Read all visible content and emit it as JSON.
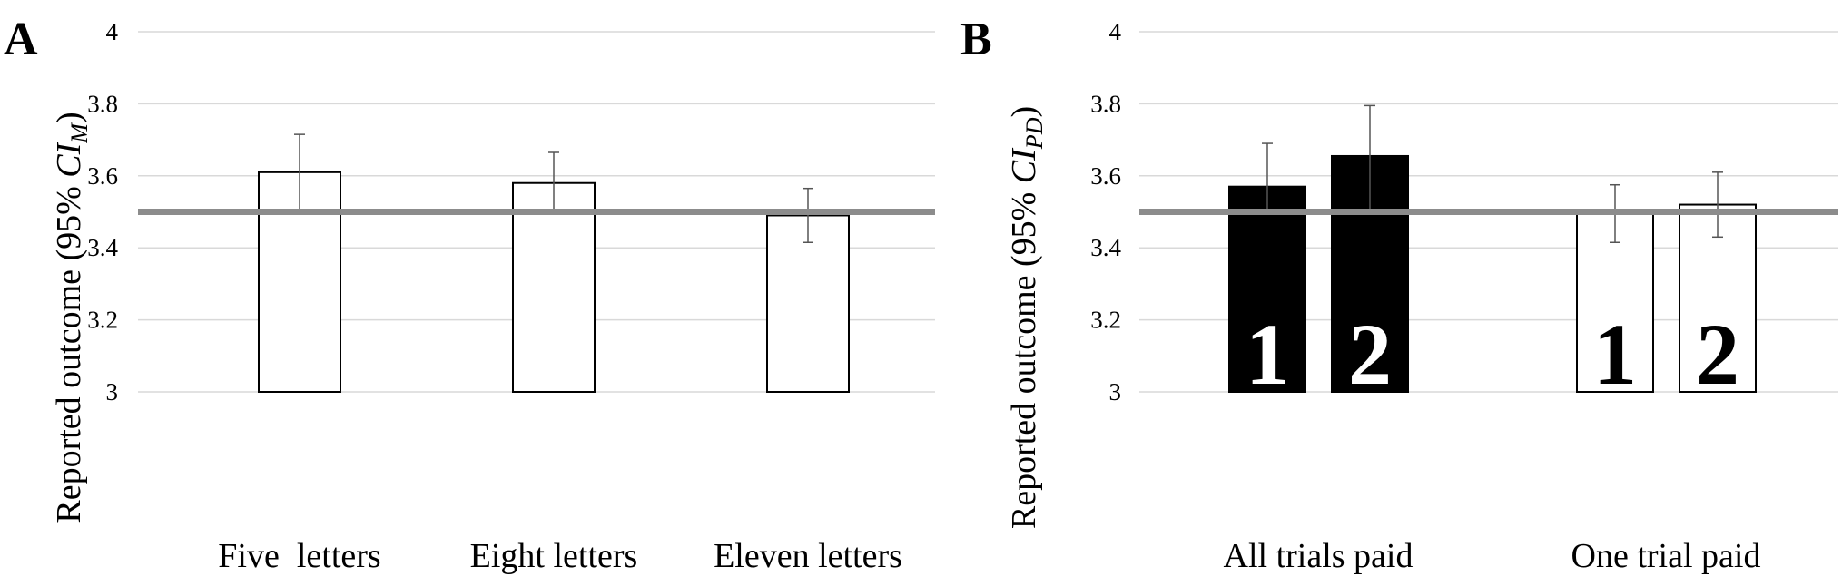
{
  "chart_data": [
    {
      "type": "bar",
      "panel_label": "A",
      "ylabel": "Reported outcome (95% ",
      "ylabel_math": "CI",
      "ylabel_sub": "M",
      "ylabel_close": ")",
      "ylim": [
        3,
        4
      ],
      "yticks": [
        "3",
        "3.2",
        "3.4",
        "3.6",
        "3.8",
        "4"
      ],
      "reference_line": 3.5,
      "categories": [
        "Five  letters",
        "Eight letters",
        "Eleven letters"
      ],
      "values": [
        3.61,
        3.58,
        3.49
      ],
      "err_low": [
        3.505,
        3.505,
        3.415
      ],
      "err_high": [
        3.715,
        3.665,
        3.565
      ],
      "bar_fill": [
        "#ffffff",
        "#ffffff",
        "#ffffff"
      ]
    },
    {
      "type": "bar",
      "panel_label": "B",
      "ylabel": "Reported outcome (95% ",
      "ylabel_math": "CI",
      "ylabel_sub": "PD",
      "ylabel_close": ")",
      "ylim": [
        3,
        4
      ],
      "yticks": [
        "3",
        "3.2",
        "3.4",
        "3.6",
        "3.8",
        "4"
      ],
      "reference_line": 3.5,
      "groups": [
        "All trials paid",
        "One trial paid"
      ],
      "bars": [
        {
          "group": 0,
          "number": "1",
          "value": 3.57,
          "err_low": 3.5,
          "err_high": 3.69,
          "fill": "#000000",
          "text_color": "#ffffff"
        },
        {
          "group": 0,
          "number": "2",
          "value": 3.655,
          "err_low": 3.5,
          "err_high": 3.795,
          "fill": "#000000",
          "text_color": "#ffffff"
        },
        {
          "group": 1,
          "number": "1",
          "value": 3.495,
          "err_low": 3.415,
          "err_high": 3.575,
          "fill": "#ffffff",
          "text_color": "#000000"
        },
        {
          "group": 1,
          "number": "2",
          "value": 3.52,
          "err_low": 3.43,
          "err_high": 3.61,
          "fill": "#ffffff",
          "text_color": "#000000"
        }
      ]
    }
  ]
}
